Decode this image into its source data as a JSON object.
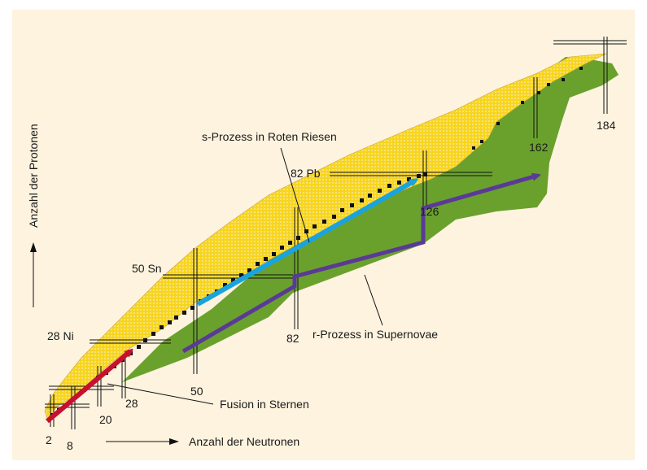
{
  "axes": {
    "x_label": "Anzahl der Neutronen",
    "y_label": "Anzahl der Protonen"
  },
  "magic_numbers": {
    "neutron": [
      "2",
      "8",
      "20",
      "28",
      "50",
      "82",
      "126",
      "162",
      "184"
    ],
    "element": [
      "28 Ni",
      "50 Sn",
      "82 Pb"
    ]
  },
  "processes": {
    "fusion": "Fusion in Sternen",
    "s_process": "s-Prozess in Roten Riesen",
    "r_process": "r-Prozess in Supernovae"
  },
  "colors": {
    "background": "#fdf3df",
    "stable": "#111111",
    "known": "#f7d51e",
    "predicted": "#6aa12d",
    "fusion_arrow": "#c8102e",
    "s_arrow": "#1aa3dd",
    "r_arrow": "#5a3a96"
  }
}
